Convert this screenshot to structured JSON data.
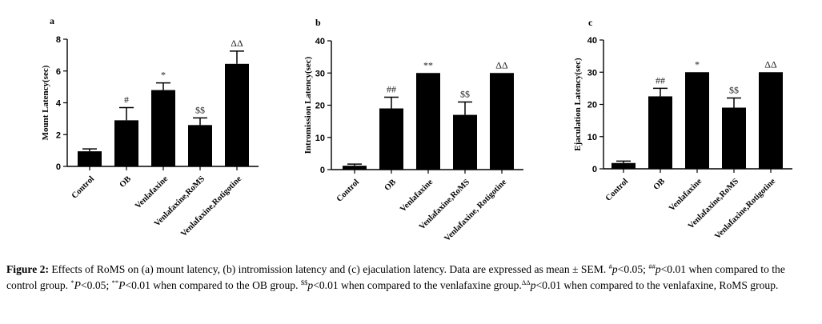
{
  "chart_data": [
    {
      "type": "bar",
      "panel_label": "a",
      "title": "",
      "xlabel": "",
      "ylabel": "Mount Latency(sec)",
      "ylim": [
        0,
        8
      ],
      "yticks": [
        "0",
        "2",
        "4",
        "6",
        "8"
      ],
      "ytick_values": [
        0,
        2,
        4,
        6,
        8
      ],
      "categories": [
        "Control",
        "OB",
        "Venlafaxine",
        "Venlafaxine,RoMS",
        "Venlafaxine,Rotigotine"
      ],
      "values": [
        0.95,
        2.9,
        4.8,
        2.6,
        6.45
      ],
      "errors": [
        0.15,
        0.8,
        0.45,
        0.45,
        0.8
      ],
      "annotations": [
        "",
        "#",
        "*",
        "$$",
        "ΔΔ"
      ]
    },
    {
      "type": "bar",
      "panel_label": "b",
      "title": "",
      "xlabel": "",
      "ylabel": "Intromission Latency(sec)",
      "ylim": [
        0,
        40
      ],
      "yticks": [
        "0",
        "10",
        "20",
        "30",
        "40"
      ],
      "ytick_values": [
        0,
        10,
        20,
        30,
        40
      ],
      "categories": [
        "Control",
        "OB",
        "Venlafaxine",
        "Venlafaxine,RoMS",
        "Venlafaxine, Rotigotine"
      ],
      "values": [
        1.2,
        19,
        30,
        17,
        30
      ],
      "errors": [
        0.5,
        3.5,
        0,
        4,
        0
      ],
      "annotations": [
        "",
        "##",
        "**",
        "$$",
        "ΔΔ"
      ]
    },
    {
      "type": "bar",
      "panel_label": "c",
      "title": "",
      "xlabel": "",
      "ylabel": "Ejaculation Latency(sec)",
      "ylim": [
        0,
        40
      ],
      "yticks": [
        "0",
        "10",
        "20",
        "30",
        "40"
      ],
      "ytick_values": [
        0,
        10,
        20,
        30,
        40
      ],
      "categories": [
        "Control",
        "OB",
        "Venlafaxine",
        "Venlafaxine,RoMS",
        "Venlafaxine,Rotigotine"
      ],
      "values": [
        1.8,
        22.5,
        30,
        19,
        30
      ],
      "errors": [
        0.6,
        2.5,
        0,
        3,
        0
      ],
      "annotations": [
        "",
        "##",
        "*",
        "$$",
        "ΔΔ"
      ]
    }
  ],
  "caption": {
    "figure_label": "Figure 2:",
    "text_1": " Effects of RoMS on (a) mount latency, (b) intromission latency and (c) ejaculation latency. Data are expressed as mean ± SEM. ",
    "sup_1": "#",
    "p_1": "p",
    "text_2": "<0.05; ",
    "sup_2": "##",
    "p_2": "p",
    "text_3": "<0.01 when compared to the control group. ",
    "sup_3": "*",
    "p_3": "P",
    "text_4": "<0.05; ",
    "sup_4": "**",
    "p_4": "P",
    "text_5": "<0.01 when compared to the OB group. ",
    "sup_5": "$$",
    "p_5": "p",
    "text_6": "<0.01 when compared to the venlafaxine group.",
    "sup_6": "ΔΔ",
    "p_6": "p",
    "text_7": "<0.01 when compared to the venlafaxine, RoMS group."
  }
}
